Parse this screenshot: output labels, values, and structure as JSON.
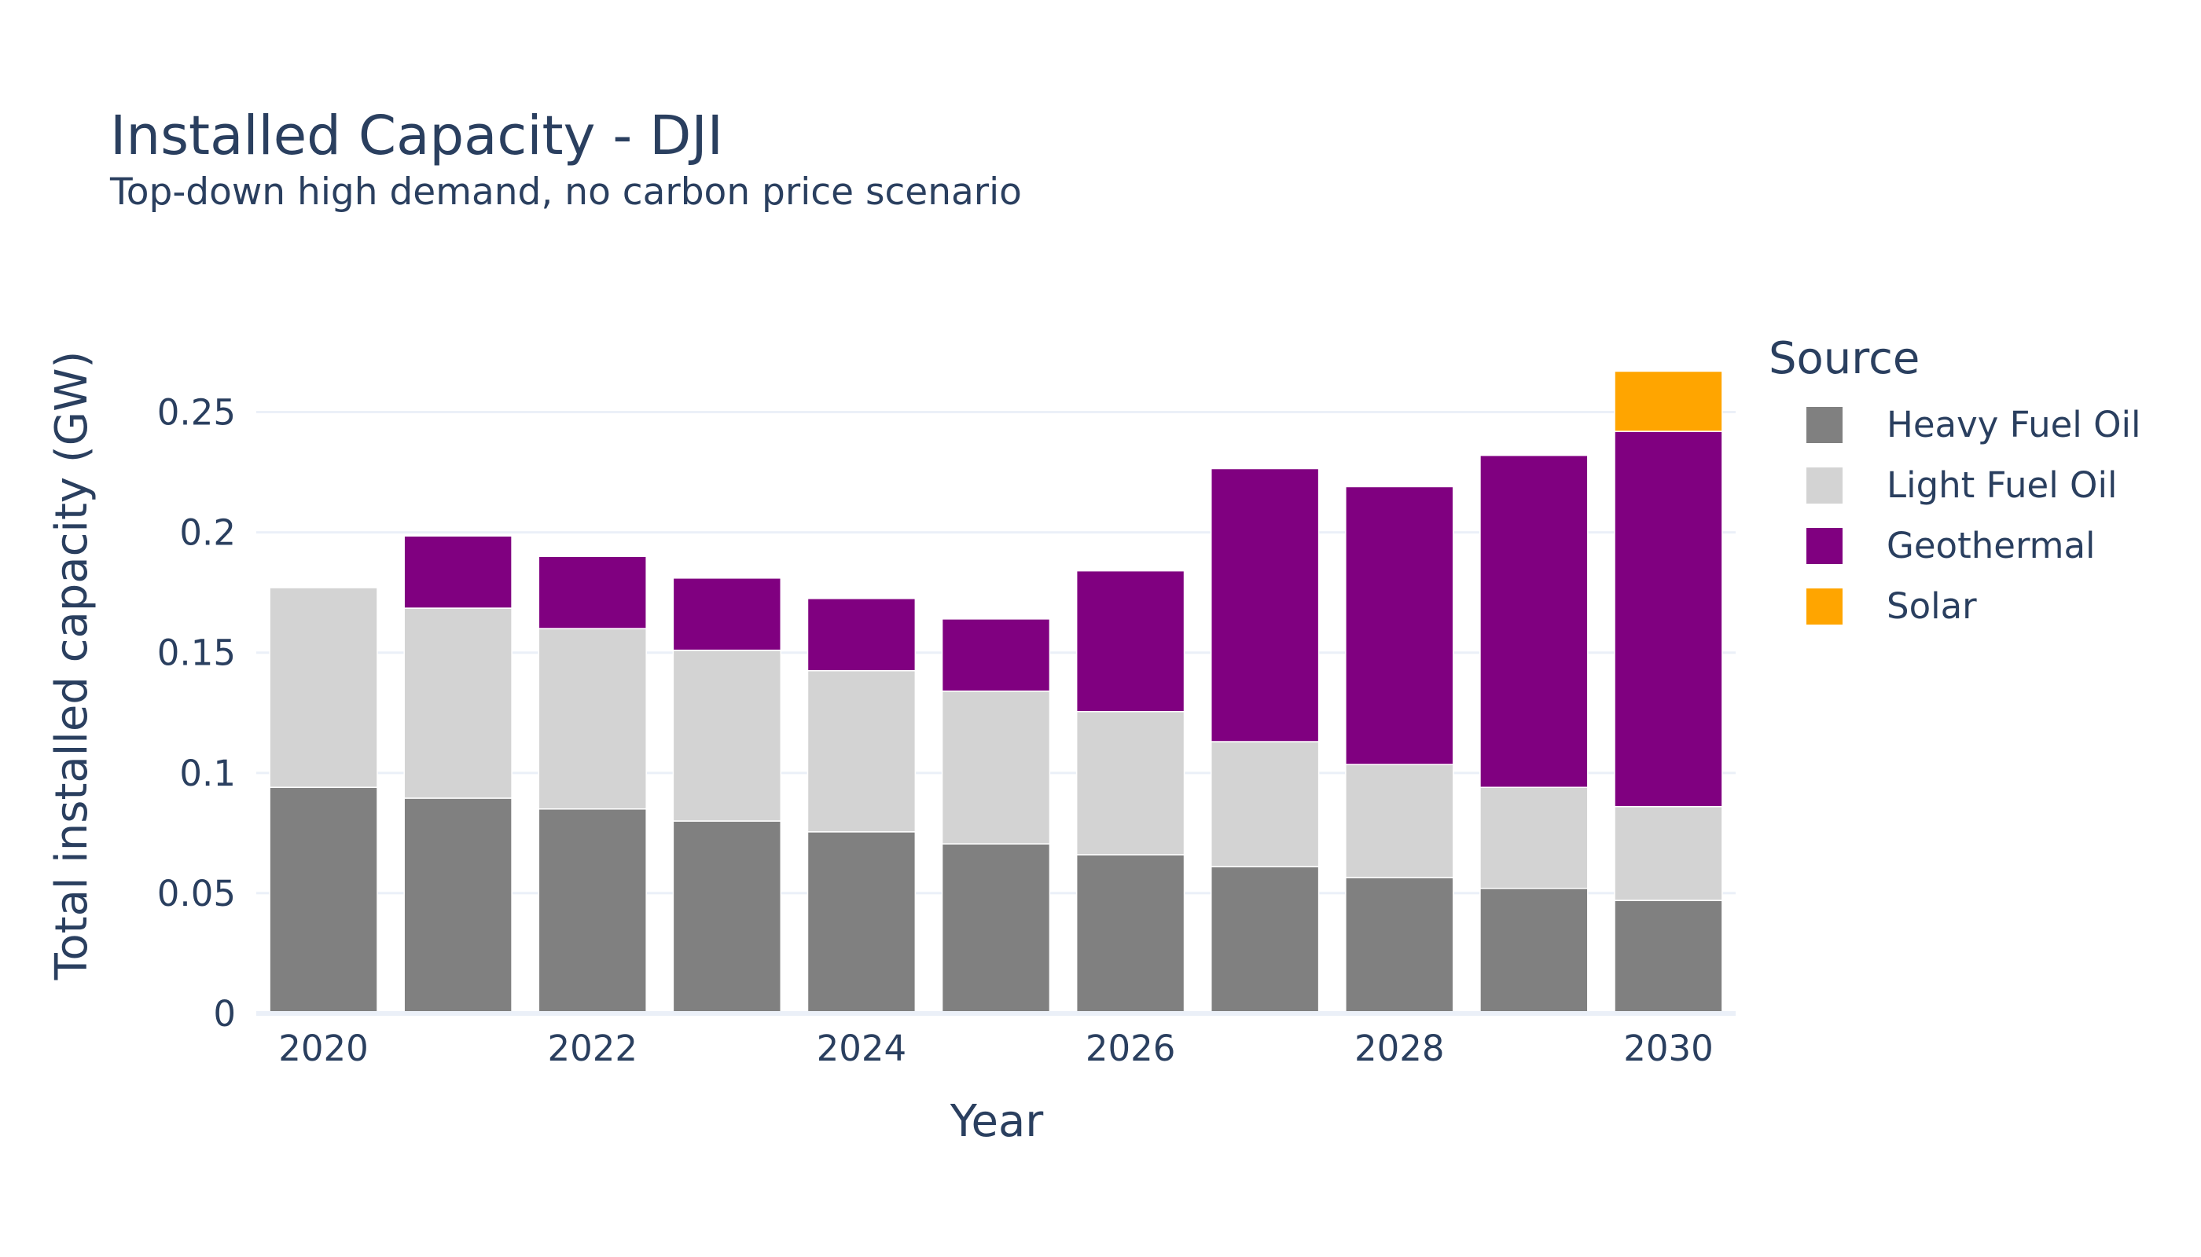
{
  "chart_data": {
    "type": "bar",
    "stacked": true,
    "title": "Installed Capacity - DJI",
    "subtitle": "Top-down high demand, no carbon price scenario",
    "xlabel": "Year",
    "ylabel": "Total installed capacity (GW)",
    "x": [
      2020,
      2021,
      2022,
      2023,
      2024,
      2025,
      2026,
      2027,
      2028,
      2029,
      2030
    ],
    "xticks": [
      "2020",
      "2022",
      "2024",
      "2026",
      "2028",
      "2030"
    ],
    "ylim": [
      0,
      0.275
    ],
    "yticks": [
      {
        "value": 0,
        "label": "0"
      },
      {
        "value": 0.05,
        "label": "0.05"
      },
      {
        "value": 0.1,
        "label": "0.1"
      },
      {
        "value": 0.15,
        "label": "0.15"
      },
      {
        "value": 0.2,
        "label": "0.2"
      },
      {
        "value": 0.25,
        "label": "0.25"
      }
    ],
    "grid": true,
    "legend_title": "Source",
    "legend_position": "right",
    "series": [
      {
        "name": "Heavy Fuel Oil",
        "color": "#808080",
        "values": [
          0.094,
          0.0895,
          0.085,
          0.08,
          0.0755,
          0.0705,
          0.066,
          0.061,
          0.0565,
          0.052,
          0.047
        ]
      },
      {
        "name": "Light Fuel Oil",
        "color": "#d3d3d3",
        "values": [
          0.083,
          0.079,
          0.075,
          0.071,
          0.067,
          0.0635,
          0.0595,
          0.052,
          0.047,
          0.042,
          0.039
        ]
      },
      {
        "name": "Geothermal",
        "color": "#800080",
        "values": [
          0,
          0.03,
          0.03,
          0.03,
          0.03,
          0.03,
          0.0585,
          0.1135,
          0.1155,
          0.138,
          0.156
        ]
      },
      {
        "name": "Solar",
        "color": "#ffa500",
        "values": [
          0,
          0,
          0,
          0,
          0,
          0,
          0,
          0,
          0,
          0,
          0.025
        ]
      }
    ]
  }
}
